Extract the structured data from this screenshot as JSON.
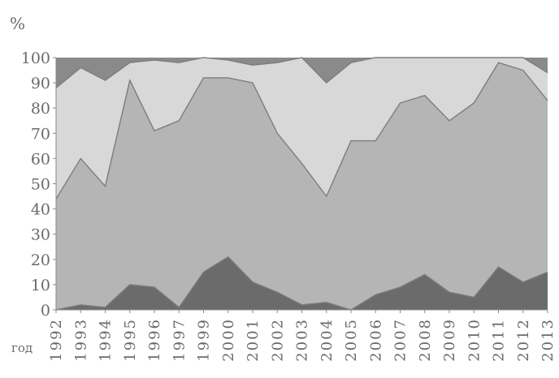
{
  "chart_data": {
    "type": "area",
    "stacked": true,
    "ylabel": "%",
    "xlabel": "год",
    "ylim": [
      0,
      100
    ],
    "yticks": [
      0,
      10,
      20,
      30,
      40,
      50,
      60,
      70,
      80,
      90,
      100
    ],
    "categories": [
      "1992",
      "1993",
      "1994",
      "1995",
      "1996",
      "1997",
      "1999",
      "2000",
      "2001",
      "2002",
      "2003",
      "2004",
      "2005",
      "2006",
      "2007",
      "2008",
      "2009",
      "2010",
      "2011",
      "2012",
      "2013"
    ],
    "boundaries": [
      [
        0,
        2,
        1,
        10,
        9,
        1,
        15,
        21,
        11,
        7,
        2,
        3,
        0,
        6,
        9,
        14,
        7,
        5,
        17,
        11,
        15
      ],
      [
        44,
        60,
        49,
        91,
        71,
        75,
        92,
        92,
        90,
        70,
        58,
        45,
        67,
        67,
        82,
        85,
        75,
        82,
        98,
        95,
        83
      ],
      [
        88,
        96,
        91,
        98,
        99,
        98,
        100,
        99,
        97,
        98,
        100,
        90,
        98,
        100,
        100,
        100,
        100,
        100,
        100,
        100,
        94
      ]
    ],
    "colors": [
      "#6b6b6b",
      "#b5b5b5",
      "#d8d8d8",
      "#8a8a8a"
    ],
    "grid": false,
    "legend": "none"
  }
}
